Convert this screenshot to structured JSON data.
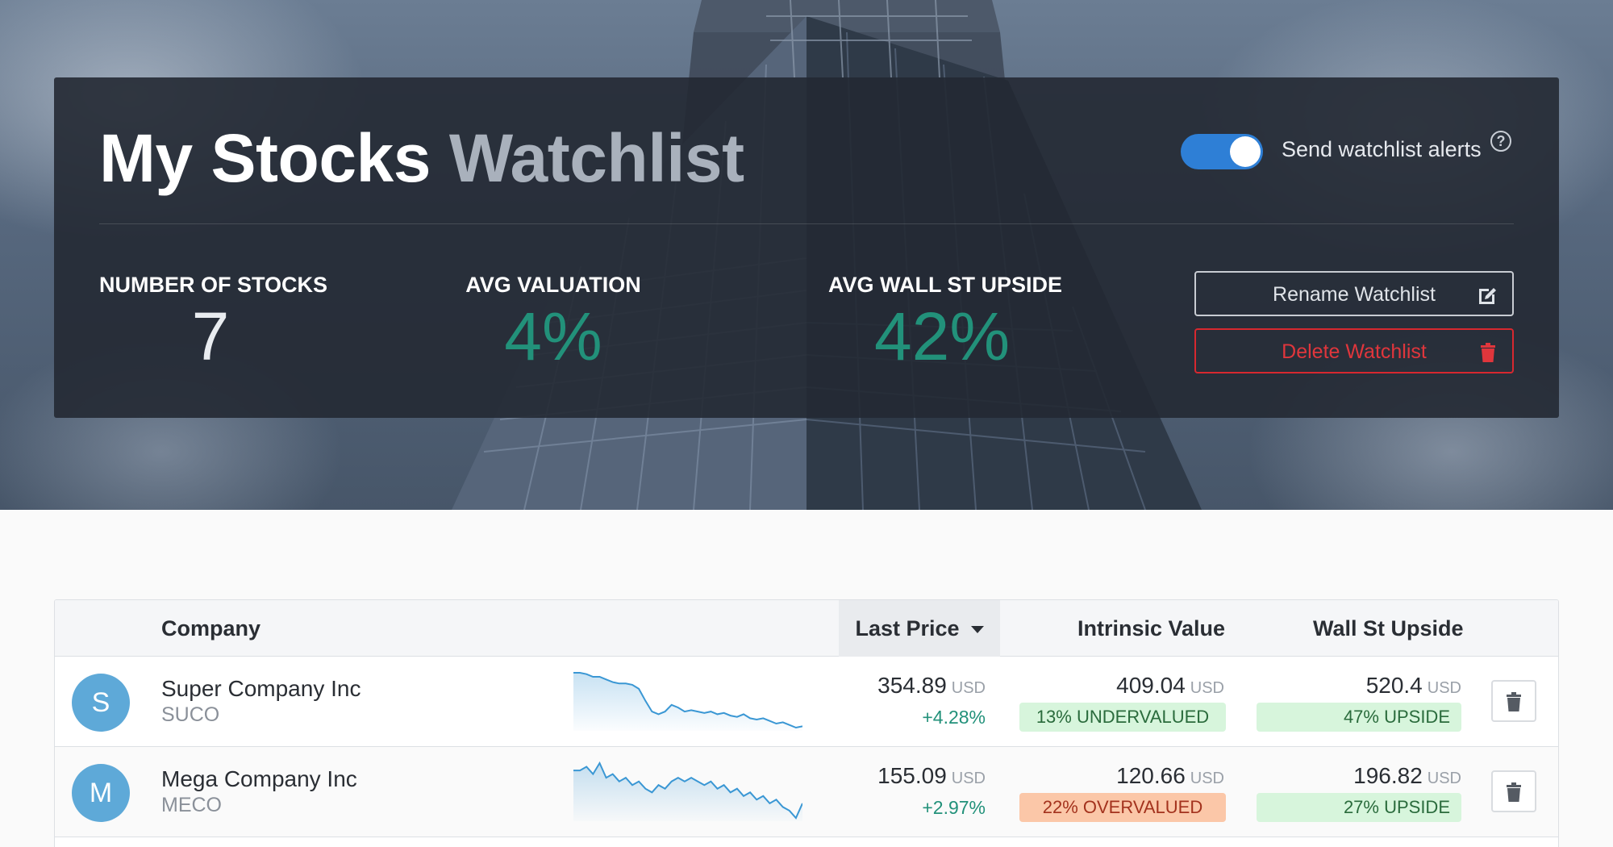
{
  "header": {
    "title_main": "My Stocks",
    "title_accent": "Watchlist",
    "alerts_label": "Send watchlist alerts",
    "alerts_enabled": true,
    "help_symbol": "?"
  },
  "stats": {
    "number_of_stocks": {
      "label": "NUMBER OF STOCKS",
      "value": "7"
    },
    "avg_valuation": {
      "label": "AVG VALUATION",
      "value": "4%"
    },
    "avg_wall_st_upside": {
      "label": "AVG WALL ST UPSIDE",
      "value": "42%"
    }
  },
  "actions": {
    "rename_label": "Rename Watchlist",
    "delete_label": "Delete Watchlist"
  },
  "table": {
    "columns": {
      "company": "Company",
      "last_price": "Last Price",
      "intrinsic_value": "Intrinsic Value",
      "wall_st_upside": "Wall St Upside"
    },
    "sorted_column": "last_price",
    "rows": [
      {
        "initial": "S",
        "name": "Super Company Inc",
        "ticker": "SUCO",
        "last_price": "354.89",
        "currency": "USD",
        "change": "+4.28%",
        "intrinsic_value": "409.04",
        "valuation_label": "13% UNDERVALUED",
        "valuation_status": "undervalued",
        "wall_st_target": "520.4",
        "upside_label": "47% UPSIDE",
        "sparkline": [
          100,
          100,
          99,
          97,
          97,
          95,
          93,
          92,
          92,
          91,
          88,
          79,
          71,
          69,
          71,
          76,
          74,
          71,
          72,
          71,
          70,
          71,
          69,
          70,
          68,
          67,
          69,
          66,
          65,
          66,
          64,
          62,
          63,
          61,
          59,
          60
        ]
      },
      {
        "initial": "M",
        "name": "Mega Company Inc",
        "ticker": "MECO",
        "last_price": "155.09",
        "currency": "USD",
        "change": "+2.97%",
        "intrinsic_value": "120.66",
        "valuation_label": "22% OVERVALUED",
        "valuation_status": "overvalued",
        "wall_st_target": "196.82",
        "upside_label": "27% UPSIDE",
        "sparkline": [
          95,
          95,
          96,
          94,
          97,
          93,
          94,
          92,
          93,
          91,
          92,
          90,
          89,
          91,
          90,
          92,
          93,
          92,
          93,
          92,
          91,
          92,
          90,
          91,
          89,
          90,
          88,
          89,
          87,
          88,
          86,
          87,
          85,
          84,
          82,
          86
        ]
      }
    ]
  },
  "colors": {
    "accent_green": "#22917a",
    "toggle_blue": "#2e7fd6",
    "danger_red": "#d7282f",
    "avatar_blue": "#5ea9d8",
    "sparkline_blue": "#3a97d4"
  }
}
